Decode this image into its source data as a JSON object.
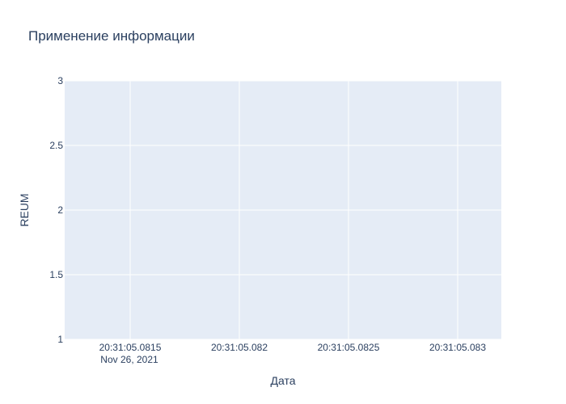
{
  "chart_data": {
    "type": "line",
    "title": "Применение информации",
    "xlabel": "Дата",
    "ylabel": "REUM",
    "x_ticks": [
      "20:31:05.0815",
      "20:31:05.082",
      "20:31:05.0825",
      "20:31:05.083"
    ],
    "x_date_label": "Nov 26, 2021",
    "y_ticks": [
      "1",
      "1.5",
      "2",
      "2.5",
      "3"
    ],
    "y_tick_values": [
      1,
      1.5,
      2,
      2.5,
      3
    ],
    "ylim": [
      1,
      3
    ],
    "series": [],
    "grid": true,
    "colors": {
      "plot_bg": "#e5ecf6",
      "grid": "#ffffff",
      "text": "#2a3f5f"
    }
  }
}
